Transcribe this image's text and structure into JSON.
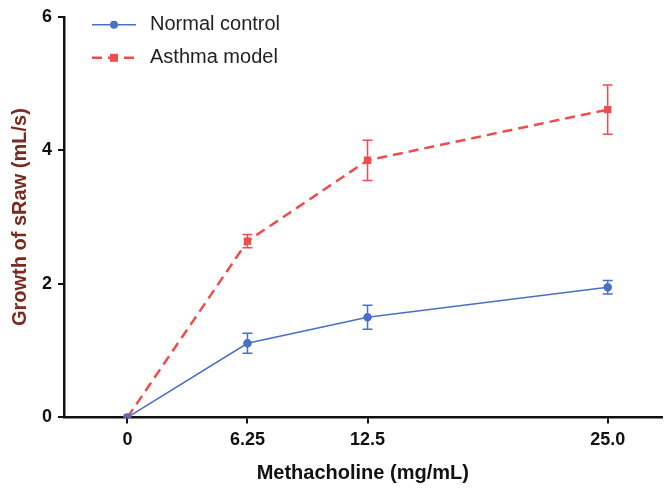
{
  "chart_data": {
    "type": "line",
    "x_label": "Methacholine (mg/mL)",
    "y_label": "Growth of sRaw (mL/s)",
    "x": [
      0,
      6.25,
      12.5,
      25
    ],
    "xlim": [
      -3.3,
      27.8
    ],
    "xticks": [
      0,
      6.25,
      12.5,
      {
        "value": 25,
        "label": "25.0"
      }
    ],
    "ylim": [
      0,
      6
    ],
    "yticks": [
      0,
      2,
      4,
      6
    ],
    "grid": false,
    "legend": "upper left",
    "series": [
      {
        "name": "Normal control",
        "color": "#4a6fc4",
        "marker": "circle",
        "line_style": "solid",
        "values": [
          0,
          1.11,
          1.5,
          1.95
        ],
        "errors": [
          0,
          0.15,
          0.18,
          0.1
        ]
      },
      {
        "name": "Asthma model",
        "color": "#ef4c4c",
        "marker": "square",
        "line_style": "dashed",
        "values": [
          0,
          2.64,
          3.85,
          4.61
        ],
        "errors": [
          0,
          0.1,
          0.3,
          0.37
        ]
      }
    ]
  }
}
